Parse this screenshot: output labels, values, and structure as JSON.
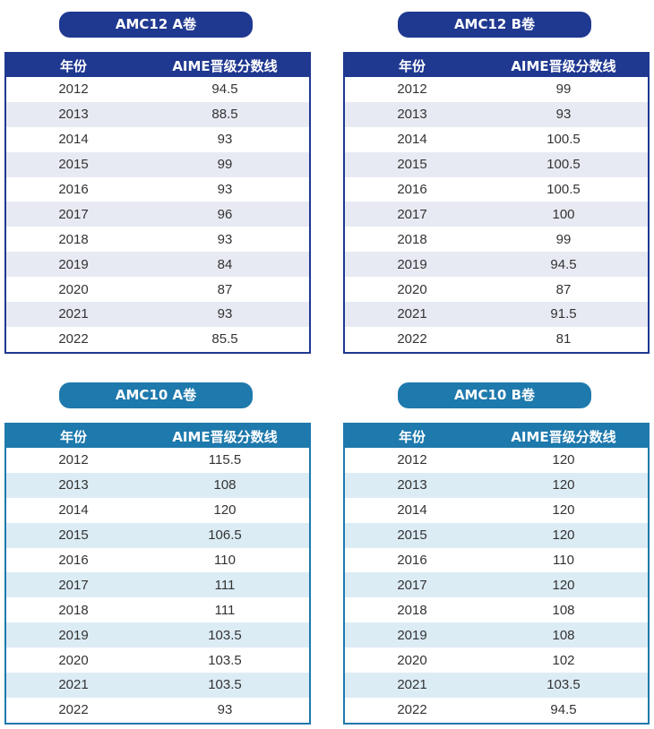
{
  "headers": {
    "year": "年份",
    "score": "AIME晋级分数线"
  },
  "colors": {
    "amc12_dark": "#1f3890",
    "amc12_stripe": "#e8eaf3",
    "amc10_dark": "#1e79ad",
    "amc10_stripe": "#dcecf5",
    "row_text": "#333333"
  },
  "tables": [
    {
      "title": "AMC12 A卷",
      "rows": [
        {
          "year": "2012",
          "score": "94.5"
        },
        {
          "year": "2013",
          "score": "88.5"
        },
        {
          "year": "2014",
          "score": "93"
        },
        {
          "year": "2015",
          "score": "99"
        },
        {
          "year": "2016",
          "score": "93"
        },
        {
          "year": "2017",
          "score": "96"
        },
        {
          "year": "2018",
          "score": "93"
        },
        {
          "year": "2019",
          "score": "84"
        },
        {
          "year": "2020",
          "score": "87"
        },
        {
          "year": "2021",
          "score": "93"
        },
        {
          "year": "2022",
          "score": "85.5"
        }
      ]
    },
    {
      "title": "AMC12 B卷",
      "rows": [
        {
          "year": "2012",
          "score": "99"
        },
        {
          "year": "2013",
          "score": "93"
        },
        {
          "year": "2014",
          "score": "100.5"
        },
        {
          "year": "2015",
          "score": "100.5"
        },
        {
          "year": "2016",
          "score": "100.5"
        },
        {
          "year": "2017",
          "score": "100"
        },
        {
          "year": "2018",
          "score": "99"
        },
        {
          "year": "2019",
          "score": "94.5"
        },
        {
          "year": "2020",
          "score": "87"
        },
        {
          "year": "2021",
          "score": "91.5"
        },
        {
          "year": "2022",
          "score": "81"
        }
      ]
    },
    {
      "title": "AMC10 A卷",
      "rows": [
        {
          "year": "2012",
          "score": "115.5"
        },
        {
          "year": "2013",
          "score": "108"
        },
        {
          "year": "2014",
          "score": "120"
        },
        {
          "year": "2015",
          "score": "106.5"
        },
        {
          "year": "2016",
          "score": "110"
        },
        {
          "year": "2017",
          "score": "111"
        },
        {
          "year": "2018",
          "score": "111"
        },
        {
          "year": "2019",
          "score": "103.5"
        },
        {
          "year": "2020",
          "score": "103.5"
        },
        {
          "year": "2021",
          "score": "103.5"
        },
        {
          "year": "2022",
          "score": "93"
        }
      ]
    },
    {
      "title": "AMC10 B卷",
      "rows": [
        {
          "year": "2012",
          "score": "120"
        },
        {
          "year": "2013",
          "score": "120"
        },
        {
          "year": "2014",
          "score": "120"
        },
        {
          "year": "2015",
          "score": "120"
        },
        {
          "year": "2016",
          "score": "110"
        },
        {
          "year": "2017",
          "score": "120"
        },
        {
          "year": "2018",
          "score": "108"
        },
        {
          "year": "2019",
          "score": "108"
        },
        {
          "year": "2020",
          "score": "102"
        },
        {
          "year": "2021",
          "score": "103.5"
        },
        {
          "year": "2022",
          "score": "94.5"
        }
      ]
    }
  ]
}
